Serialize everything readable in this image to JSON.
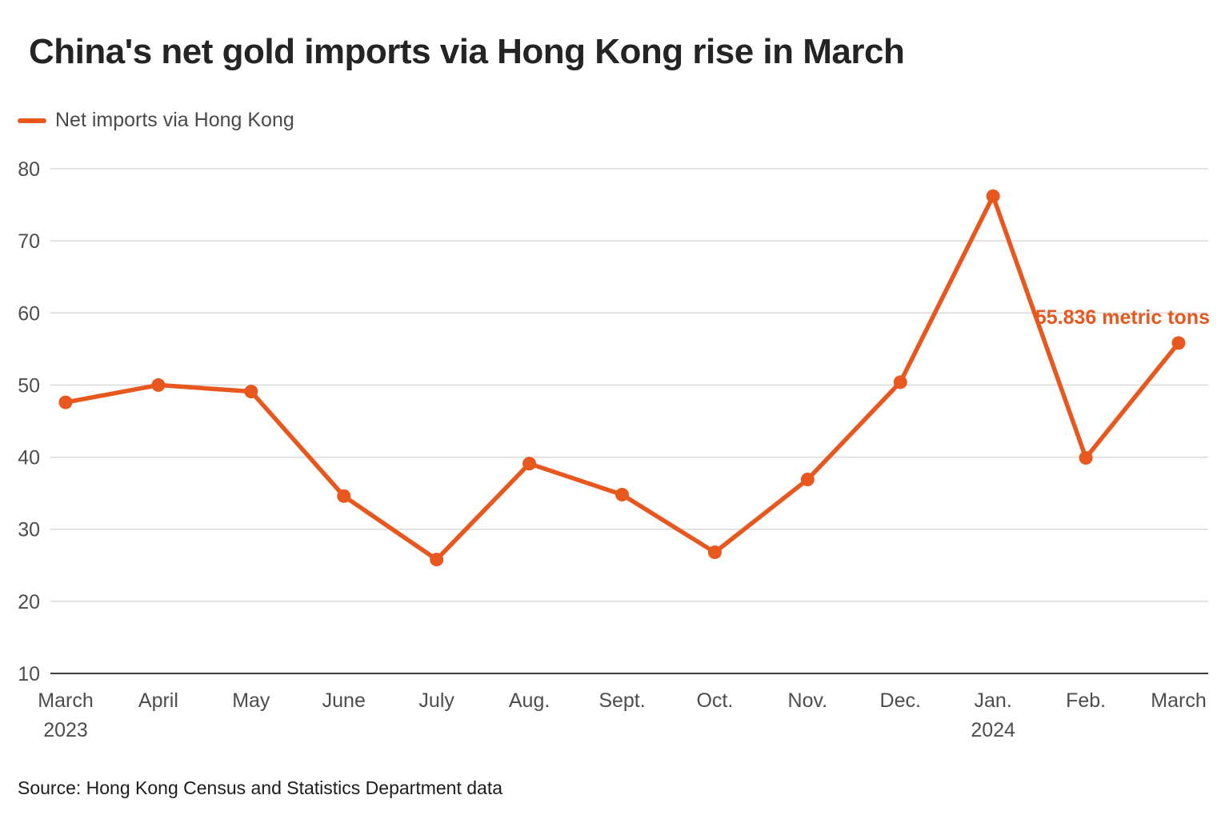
{
  "page": {
    "title": "China's net gold imports via Hong Kong rise in March",
    "source": "Source: Hong Kong Census and Statistics Department data"
  },
  "legend": {
    "label": "Net imports via Hong Kong",
    "color": "#e8571d"
  },
  "chart_data": {
    "type": "line",
    "title": "China's net gold imports via Hong Kong rise in March",
    "xlabel": "",
    "ylabel": "",
    "unit": "metric tons",
    "categories": [
      "March",
      "April",
      "May",
      "June",
      "July",
      "Aug.",
      "Sept.",
      "Oct.",
      "Nov.",
      "Dec.",
      "Jan.",
      "Feb.",
      "March"
    ],
    "year_labels": [
      {
        "index": 0,
        "text": "2023"
      },
      {
        "index": 10,
        "text": "2024"
      }
    ],
    "series": [
      {
        "name": "Net imports via Hong Kong",
        "color": "#e8571d",
        "values": [
          47.6,
          50.0,
          49.1,
          34.6,
          25.8,
          39.1,
          34.8,
          26.8,
          36.9,
          50.4,
          76.2,
          39.9,
          55.836
        ]
      }
    ],
    "ylim": [
      10,
      80
    ],
    "yticks": [
      10,
      20,
      30,
      40,
      50,
      60,
      70,
      80
    ],
    "grid": true,
    "legend_position": "top-left",
    "annotation": {
      "text": "55.836 metric tons",
      "series_index": 0,
      "point_index": 12
    }
  }
}
